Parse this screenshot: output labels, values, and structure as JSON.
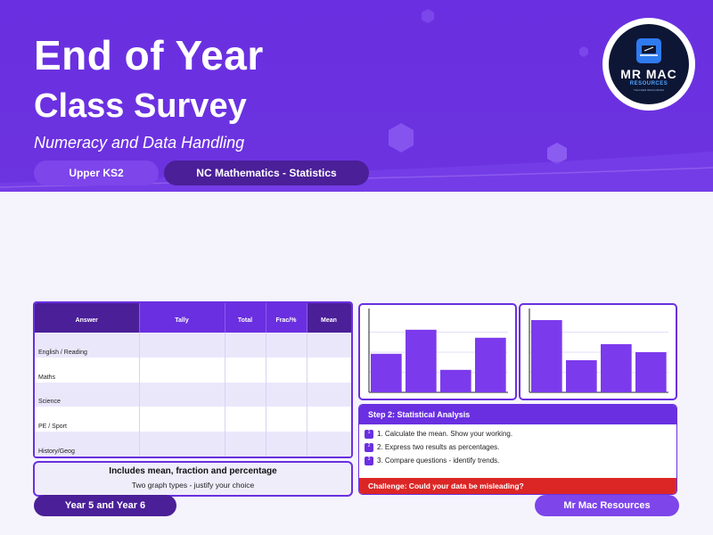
{
  "header": {
    "title_line1": "End of Year",
    "title_line2": "Class Survey",
    "subtitle": "Numeracy and Data Handling",
    "pill_left": "Upper KS2",
    "pill_right": "NC Mathematics - Statistics"
  },
  "logo": {
    "line1": "MR MAC",
    "line2": "RESOURCES",
    "line3": "TEACHER RESOURCES"
  },
  "table": {
    "columns": [
      "Answer",
      "Tally",
      "Total",
      "Frac/%",
      "Mean"
    ],
    "rows": [
      "English / Reading",
      "Maths",
      "Science",
      "PE / Sport",
      "History/Geog"
    ]
  },
  "note": {
    "title": "Includes mean, fraction and percentage",
    "subtitle": "Two graph types - justify your choice"
  },
  "chart_data": [
    {
      "type": "bar",
      "values": [
        0.48,
        0.78,
        0.28,
        0.68
      ],
      "ylim": [
        0,
        1
      ]
    },
    {
      "type": "bar",
      "values": [
        0.9,
        0.4,
        0.6,
        0.5
      ],
      "ylim": [
        0,
        1
      ]
    }
  ],
  "colors": {
    "accent": "#6a2fe0",
    "dark_accent": "#4a1f98",
    "bar": "#7c3aed",
    "challenge": "#dc2626"
  },
  "step": {
    "title": "Step 2: Statistical Analysis",
    "items": [
      "1. Calculate the mean. Show your working.",
      "2. Express two results as percentages.",
      "3. Compare questions - identify trends."
    ],
    "challenge": "Challenge: Could your data be misleading?"
  },
  "footer": {
    "left": "Year 5 and Year 6",
    "right": "Mr Mac Resources"
  }
}
